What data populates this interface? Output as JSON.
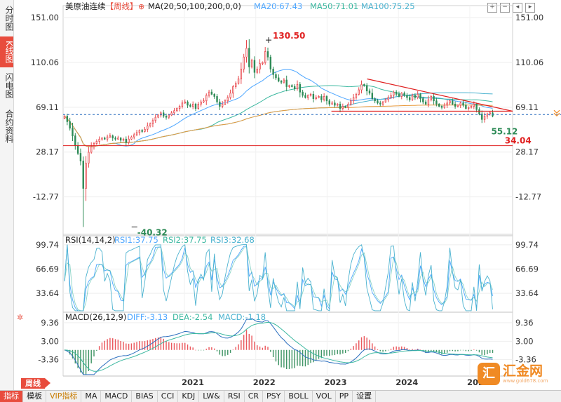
{
  "sidebar": {
    "tabs": [
      "分时图",
      "K线图",
      "闪电图",
      "合约资料"
    ]
  },
  "header": {
    "instrument": "美原油连续",
    "period": "【周线】",
    "ma_label": "MA(20,50,100,200,0,0)",
    "ma20": "MA20:67.43",
    "ma50": "MA50:71.01",
    "ma100": "MA100:75.25"
  },
  "rsi_header": {
    "label": "RSI(14,14,2)",
    "rsi1": "RSI1:37.75",
    "rsi2": "RSI2:37.75",
    "rsi3": "RSI3:32.68"
  },
  "macd_header": {
    "label": "MACD(26,12,9)",
    "diff": "DIFF:-3.13",
    "dea": "DEA:-2.54",
    "macd": "MACD:-1.18"
  },
  "period_tag": "周线",
  "bottom_tabs": [
    "指标",
    "模板",
    "VIP指标",
    "MA",
    "MACD",
    "BIAS",
    "CCI",
    "KDJ",
    "LW&",
    "RSI",
    "CR",
    "PSY",
    "BOLL",
    "VOL",
    "PP",
    "设置"
  ],
  "logo": {
    "mark": "汇",
    "name": "汇金网",
    "url": "www.gold678.com"
  },
  "colors": {
    "up": "#e8474c",
    "down": "#2e8b57",
    "ma20": "#4da6ff",
    "ma50": "#3cb8a0",
    "ma100": "#4ab2cf",
    "ma200": "#e89a3c",
    "trend": "#e02020"
  },
  "chart_data": [
    {
      "type": "candlestick",
      "title": "美原油连续 周线",
      "y_ticks": [
        "151.00",
        "110.06",
        "69.11",
        "28.17",
        "-12.77"
      ],
      "y_tick_values": [
        151.0,
        110.06,
        69.11,
        28.17,
        -12.77
      ],
      "ylim": [
        -47,
        162
      ],
      "x_ticks": [
        "2021",
        "2022",
        "2023",
        "2024",
        "2025"
      ],
      "x_tick_values": [
        2021.0,
        2022.0,
        2023.0,
        2024.0,
        2025.0
      ],
      "xlim": [
        2019.3,
        2025.6
      ],
      "annotations": [
        {
          "text": "130.50",
          "x": 2022.18,
          "y": 130.5
        },
        {
          "text": "-40.32",
          "x": 2020.3,
          "y": -40.32
        },
        {
          "text": "55.12",
          "x": 2025.28,
          "y": 55.12
        },
        {
          "text": "34.04",
          "x": 2025.45,
          "y": 34.04
        }
      ],
      "horizontal_lines": [
        {
          "y": 34.04
        },
        {
          "y": 62.5,
          "style": "dashed"
        }
      ],
      "trendlines": [
        {
          "from": [
            2023.56,
            95.0
          ],
          "to": [
            2025.6,
            65.5
          ]
        },
        {
          "from": [
            2023.06,
            65.5
          ],
          "to": [
            2025.6,
            65.5
          ]
        }
      ],
      "closes": [
        61,
        56,
        50,
        43,
        34,
        27,
        20,
        -5,
        18,
        28,
        33,
        36,
        38,
        40,
        41,
        40,
        42,
        43,
        41,
        40,
        41,
        39,
        40,
        37,
        40,
        42,
        44,
        46,
        48,
        47,
        49,
        52,
        54,
        57,
        60,
        62,
        64,
        61,
        60,
        62,
        64,
        66,
        68,
        70,
        73,
        74,
        71,
        70,
        72,
        68,
        72,
        74,
        75,
        80,
        83,
        81,
        79,
        74,
        70,
        72,
        75,
        78,
        82,
        88,
        91,
        95,
        104,
        115,
        123,
        106,
        112,
        101,
        104,
        109,
        110,
        120,
        115,
        104,
        99,
        96,
        93,
        92,
        94,
        88,
        89,
        88,
        86,
        90,
        83,
        80,
        78,
        80,
        81,
        77,
        78,
        79,
        76,
        79,
        75,
        72,
        73,
        71,
        72,
        68,
        70,
        69,
        72,
        75,
        78,
        81,
        85,
        90,
        89,
        84,
        82,
        77,
        75,
        73,
        72,
        74,
        76,
        78,
        80,
        83,
        81,
        79,
        82,
        80,
        78,
        76,
        80,
        78,
        81,
        77,
        74,
        72,
        76,
        79,
        75,
        72,
        70,
        69,
        71,
        73,
        75,
        72,
        70,
        71,
        73,
        71,
        68,
        69,
        70,
        72,
        67,
        63,
        58,
        61,
        63,
        64,
        61
      ],
      "series": [
        {
          "name": "MA20",
          "values": []
        },
        {
          "name": "MA50",
          "values": []
        },
        {
          "name": "MA100",
          "values": []
        },
        {
          "name": "MA200",
          "values": []
        }
      ]
    },
    {
      "type": "line",
      "title": "RSI(14,14,2)",
      "y_ticks": [
        "99.74",
        "66.69",
        "33.64"
      ],
      "y_tick_values": [
        99.74,
        66.69,
        33.64
      ],
      "ylim": [
        8,
        112
      ],
      "series": [
        {
          "name": "RSI1",
          "values": []
        },
        {
          "name": "RSI2",
          "values": []
        },
        {
          "name": "RSI3",
          "values": []
        }
      ]
    },
    {
      "type": "bar",
      "title": "MACD(26,12,9)",
      "y_ticks": [
        "9.36",
        "3.00",
        "-3.36"
      ],
      "y_tick_values": [
        9.36,
        3.0,
        -3.36
      ],
      "ylim": [
        -9,
        13
      ],
      "series": [
        {
          "name": "DIFF",
          "values": []
        },
        {
          "name": "DEA",
          "values": []
        },
        {
          "name": "MACD",
          "values": []
        }
      ]
    }
  ]
}
